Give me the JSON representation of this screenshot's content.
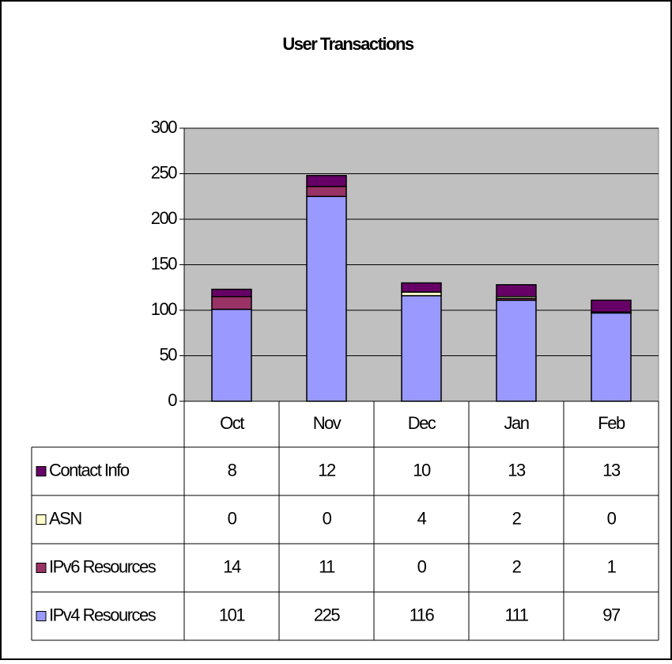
{
  "chart_data": {
    "type": "bar",
    "stacked": true,
    "title": "User Transactions",
    "categories": [
      "Oct",
      "Nov",
      "Dec",
      "Jan",
      "Feb"
    ],
    "series": [
      {
        "name": "IPv4 Resources",
        "color": "#9999ff",
        "values": [
          101,
          225,
          116,
          111,
          97
        ]
      },
      {
        "name": "IPv6 Resources",
        "color": "#993366",
        "values": [
          14,
          11,
          0,
          2,
          1
        ]
      },
      {
        "name": "ASN",
        "color": "#ffffcc",
        "values": [
          0,
          0,
          4,
          2,
          0
        ]
      },
      {
        "name": "Contact Info",
        "color": "#660066",
        "values": [
          8,
          12,
          10,
          13,
          13
        ]
      }
    ],
    "ylim": [
      0,
      300
    ],
    "yticks": [
      0,
      50,
      100,
      150,
      200,
      250,
      300
    ],
    "grid": true,
    "data_table": true
  }
}
